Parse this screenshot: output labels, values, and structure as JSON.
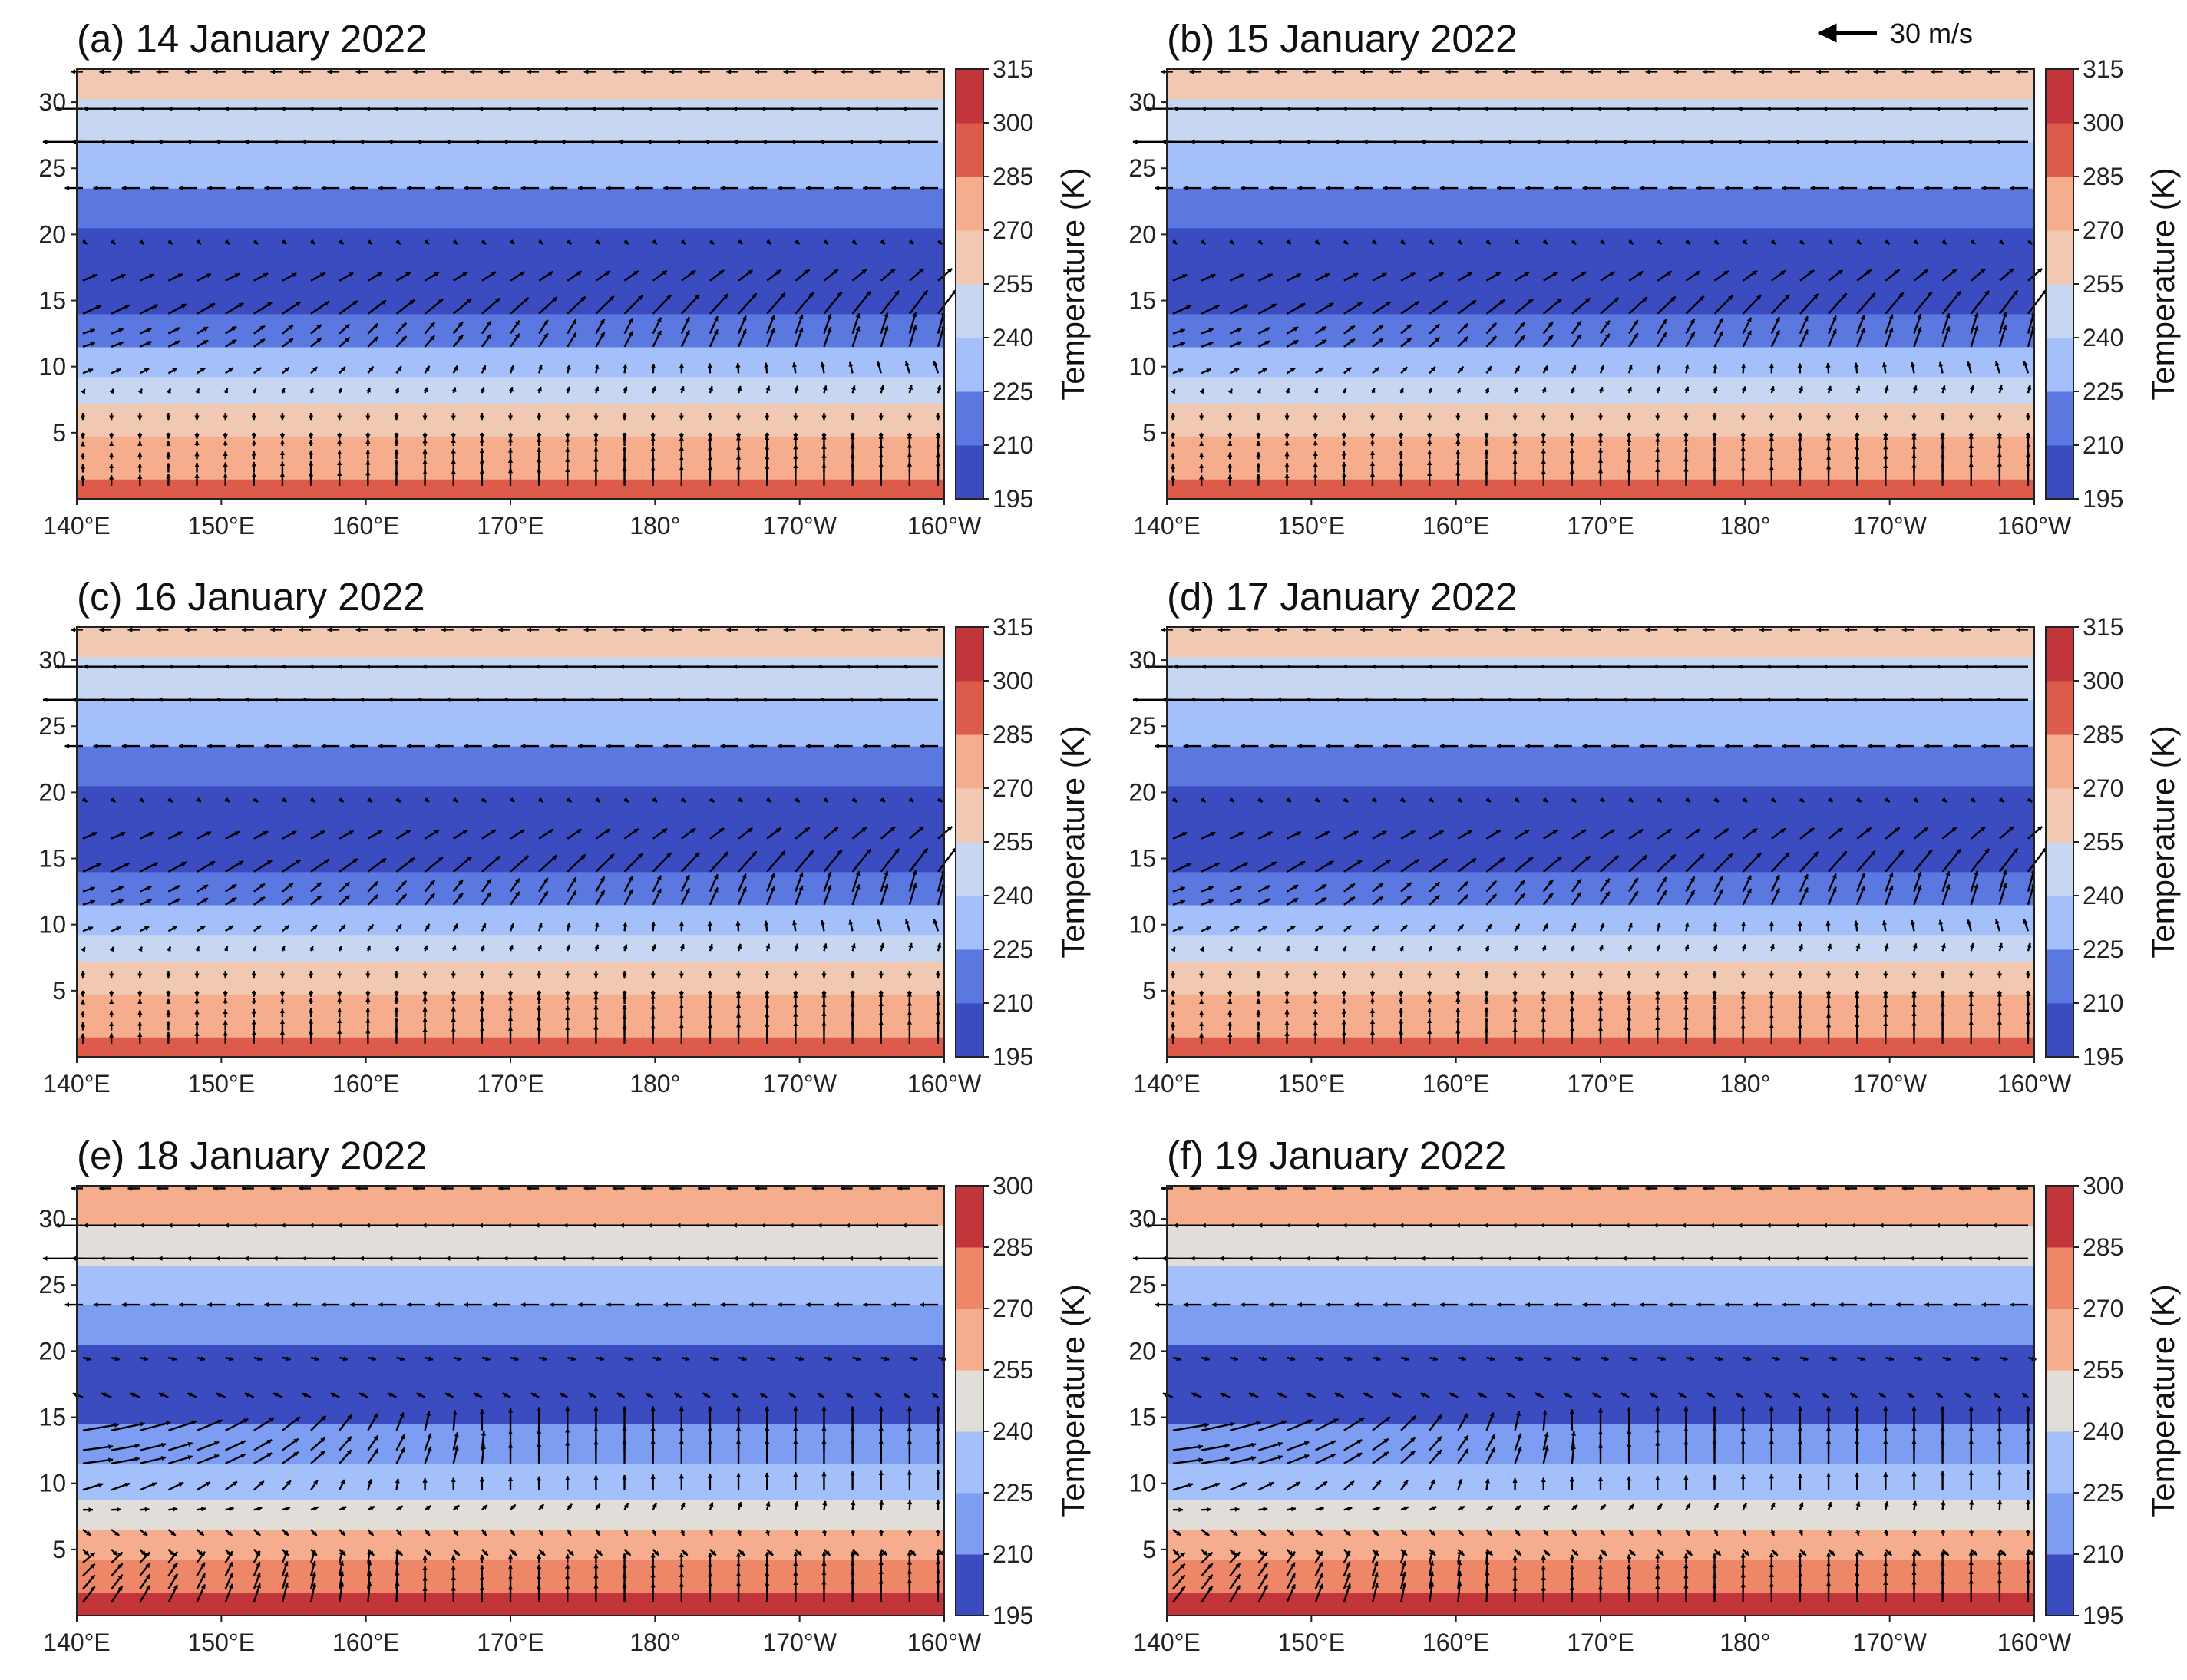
{
  "figure": {
    "reference_vector_label": "30 m/s",
    "reference_vector_speed_ms": 30
  },
  "colors": {
    "palette": [
      "#3b4cc0",
      "#5a78e0",
      "#7d9df2",
      "#a3c0fb",
      "#c8d7f1",
      "#e1ddd8",
      "#f1c9b3",
      "#f6ad8d",
      "#ee8668",
      "#dd5b4a",
      "#c2353a"
    ],
    "arrow": "#000000",
    "axes": "#222222"
  },
  "chart_data": [
    {
      "type": "contourf+quiver",
      "panel": "a",
      "title": "(a) 14 January 2022",
      "x_tick_labels": [
        "140°E",
        "150°E",
        "160°E",
        "170°E",
        "180°",
        "170°W",
        "160°W"
      ],
      "x_range": [
        140,
        200
      ],
      "y_ticks": [
        5,
        10,
        15,
        20,
        25,
        30
      ],
      "ylim": [
        0,
        32.5
      ],
      "colorbar_label": "Temperature (K)",
      "colorbar_levels": [
        195,
        210,
        225,
        240,
        255,
        270,
        285,
        300,
        315
      ],
      "temperature_profile_K": {
        "height_km": [
          0,
          1.5,
          3,
          4.5,
          6,
          7.5,
          9,
          10.5,
          12,
          14,
          16,
          17.5,
          19,
          21,
          23,
          25,
          27,
          29,
          31,
          32.5
        ],
        "value": [
          295,
          285,
          278,
          272,
          263,
          253,
          242,
          233,
          220,
          210,
          203,
          201,
          203,
          212,
          222,
          232,
          240,
          249,
          258,
          262
        ]
      },
      "wind_rows_km": [
        1,
        2,
        3,
        4,
        5,
        6.5,
        8,
        9.5,
        11.5,
        12.5,
        14,
        16.5,
        19.5,
        23.5,
        27,
        29.5,
        32.3
      ]
    },
    {
      "type": "contourf+quiver",
      "panel": "b",
      "title": "(b) 15 January 2022",
      "x_tick_labels": [
        "140°E",
        "150°E",
        "160°E",
        "170°E",
        "180°",
        "170°W",
        "160°W"
      ],
      "x_range": [
        140,
        200
      ],
      "y_ticks": [
        5,
        10,
        15,
        20,
        25,
        30
      ],
      "ylim": [
        0,
        32.5
      ],
      "colorbar_label": "Temperature (K)",
      "colorbar_levels": [
        195,
        210,
        225,
        240,
        255,
        270,
        285,
        300,
        315
      ],
      "temperature_profile_K": {
        "height_km": [
          0,
          1.5,
          3,
          4.5,
          6,
          7.5,
          9,
          10.5,
          12,
          14,
          16,
          17.5,
          19,
          21,
          23,
          25,
          27,
          29,
          31,
          32.5
        ],
        "value": [
          295,
          285,
          278,
          272,
          263,
          253,
          242,
          233,
          220,
          210,
          203,
          201,
          203,
          212,
          222,
          232,
          240,
          249,
          258,
          262
        ]
      },
      "wind_rows_km": [
        1,
        2,
        3,
        4,
        5,
        6.5,
        8,
        9.5,
        11.5,
        12.5,
        14,
        16.5,
        19.5,
        23.5,
        27,
        29.5,
        32.3
      ]
    },
    {
      "type": "contourf+quiver",
      "panel": "c",
      "title": "(c) 16 January 2022",
      "x_tick_labels": [
        "140°E",
        "150°E",
        "160°E",
        "170°E",
        "180°",
        "170°W",
        "160°W"
      ],
      "x_range": [
        140,
        200
      ],
      "y_ticks": [
        5,
        10,
        15,
        20,
        25,
        30
      ],
      "ylim": [
        0,
        32.5
      ],
      "colorbar_label": "Temperature (K)",
      "colorbar_levels": [
        195,
        210,
        225,
        240,
        255,
        270,
        285,
        300,
        315
      ],
      "temperature_profile_K": {
        "height_km": [
          0,
          1.5,
          3,
          4.5,
          6,
          7.5,
          9,
          10.5,
          12,
          14,
          16,
          17.5,
          19,
          21,
          23,
          25,
          27,
          29,
          31,
          32.5
        ],
        "value": [
          295,
          285,
          278,
          272,
          263,
          253,
          242,
          233,
          220,
          210,
          203,
          201,
          203,
          212,
          222,
          232,
          240,
          249,
          258,
          262
        ]
      },
      "wind_rows_km": [
        1,
        2,
        3,
        4,
        5,
        6.5,
        8,
        9.5,
        11.5,
        12.5,
        14,
        16.5,
        19.5,
        23.5,
        27,
        29.5,
        32.3
      ]
    },
    {
      "type": "contourf+quiver",
      "panel": "d",
      "title": "(d) 17 January 2022",
      "x_tick_labels": [
        "140°E",
        "150°E",
        "160°E",
        "170°E",
        "180°",
        "170°W",
        "160°W"
      ],
      "x_range": [
        140,
        200
      ],
      "y_ticks": [
        5,
        10,
        15,
        20,
        25,
        30
      ],
      "ylim": [
        0,
        32.5
      ],
      "colorbar_label": "Temperature (K)",
      "colorbar_levels": [
        195,
        210,
        225,
        240,
        255,
        270,
        285,
        300,
        315
      ],
      "temperature_profile_K": {
        "height_km": [
          0,
          1.5,
          3,
          4.5,
          6,
          7.5,
          9,
          10.5,
          12,
          14,
          16,
          17.5,
          19,
          21,
          23,
          25,
          27,
          29,
          31,
          32.5
        ],
        "value": [
          295,
          285,
          278,
          272,
          263,
          253,
          242,
          233,
          220,
          210,
          203,
          201,
          203,
          212,
          222,
          232,
          240,
          249,
          258,
          262
        ]
      },
      "wind_rows_km": [
        1,
        2,
        3,
        4,
        5,
        6.5,
        8,
        9.5,
        11.5,
        12.5,
        14,
        16.5,
        19.5,
        23.5,
        27,
        29.5,
        32.3
      ]
    },
    {
      "type": "contourf+quiver",
      "panel": "e",
      "title": "(e) 18 January 2022",
      "x_tick_labels": [
        "140°E",
        "150°E",
        "160°E",
        "170°E",
        "180°",
        "170°W",
        "160°W"
      ],
      "x_range": [
        140,
        200
      ],
      "y_ticks": [
        5,
        10,
        15,
        20,
        25,
        30
      ],
      "ylim": [
        0,
        32.5
      ],
      "colorbar_label": "Temperature (K)",
      "colorbar_levels": [
        195,
        210,
        225,
        240,
        255,
        270,
        285,
        300
      ],
      "temperature_profile_K": {
        "height_km": [
          0,
          1.5,
          3,
          4.5,
          6,
          7.5,
          9,
          10.5,
          12,
          14,
          16,
          17.5,
          19,
          21,
          23,
          25,
          27,
          29,
          31,
          32.5
        ],
        "value": [
          297,
          287,
          277,
          268,
          258,
          248,
          238,
          232,
          222,
          212,
          203,
          201,
          203,
          212,
          222,
          232,
          242,
          252,
          262,
          266
        ]
      },
      "wind_rows_km": [
        1,
        2,
        3,
        4,
        5,
        6.5,
        8,
        9.5,
        11.5,
        12.5,
        14,
        16.5,
        19.5,
        23.5,
        27,
        29.5,
        32.3
      ]
    },
    {
      "type": "contourf+quiver",
      "panel": "f",
      "title": "(f) 19 January 2022",
      "x_tick_labels": [
        "140°E",
        "150°E",
        "160°E",
        "170°E",
        "180°",
        "170°W",
        "160°W"
      ],
      "x_range": [
        140,
        200
      ],
      "y_ticks": [
        5,
        10,
        15,
        20,
        25,
        30
      ],
      "ylim": [
        0,
        32.5
      ],
      "colorbar_label": "Temperature (K)",
      "colorbar_levels": [
        195,
        210,
        225,
        240,
        255,
        270,
        285,
        300
      ],
      "temperature_profile_K": {
        "height_km": [
          0,
          1.5,
          3,
          4.5,
          6,
          7.5,
          9,
          10.5,
          12,
          14,
          16,
          17.5,
          19,
          21,
          23,
          25,
          27,
          29,
          31,
          32.5
        ],
        "value": [
          297,
          287,
          277,
          268,
          258,
          248,
          238,
          232,
          222,
          212,
          203,
          201,
          203,
          212,
          222,
          232,
          242,
          252,
          262,
          266
        ]
      },
      "wind_rows_km": [
        1,
        2,
        3,
        4,
        5,
        6.5,
        8,
        9.5,
        11.5,
        12.5,
        14,
        16.5,
        19.5,
        23.5,
        27,
        29.5,
        32.3
      ]
    }
  ]
}
